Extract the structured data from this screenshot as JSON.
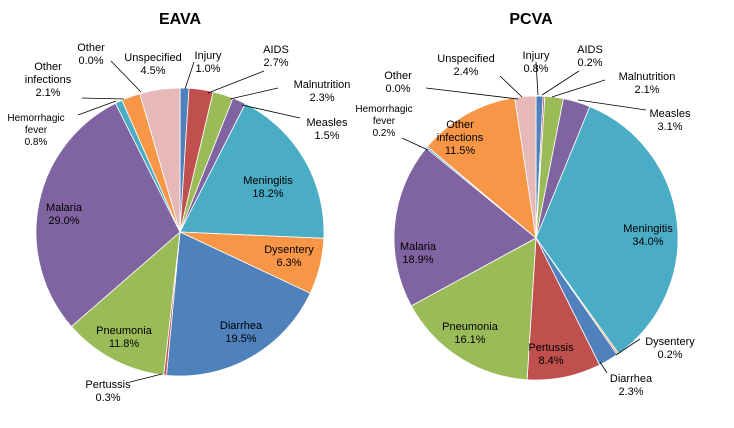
{
  "chart_data": [
    {
      "type": "pie",
      "title": "EAVA",
      "slices": [
        {
          "label": "Injury",
          "display": "1.0%",
          "value": 1.0,
          "color": "#4F81BD"
        },
        {
          "label": "AIDS",
          "display": "2.7%",
          "value": 2.7,
          "color": "#C0504D"
        },
        {
          "label": "Malnutrition",
          "display": "2.3%",
          "value": 2.3,
          "color": "#9BBB59"
        },
        {
          "label": "Measles",
          "display": "1.5%",
          "value": 1.5,
          "color": "#8064A2"
        },
        {
          "label": "Meningitis",
          "display": "18.2%",
          "value": 18.2,
          "color": "#4BACC6"
        },
        {
          "label": "Dysentery",
          "display": "6.3%",
          "value": 6.3,
          "color": "#F79646"
        },
        {
          "label": "Diarrhea",
          "display": "19.5%",
          "value": 19.5,
          "color": "#4F81BD"
        },
        {
          "label": "Pertussis",
          "display": "0.3%",
          "value": 0.3,
          "color": "#C0504D"
        },
        {
          "label": "Pneumonia",
          "display": "11.8%",
          "value": 11.8,
          "color": "#9BBB59"
        },
        {
          "label": "Malaria",
          "display": "29.0%",
          "value": 29.0,
          "color": "#8064A2"
        },
        {
          "label": "Hemorrhagic fever",
          "display": "0.8%",
          "value": 0.8,
          "color": "#4BACC6"
        },
        {
          "label": "Other infections",
          "display": "2.1%",
          "value": 2.1,
          "color": "#F79646"
        },
        {
          "label": "Other",
          "display": "0.0%",
          "value": 0.0,
          "color": "#2C4D75"
        },
        {
          "label": "Unspecified",
          "display": "4.5%",
          "value": 4.5,
          "color": "#E6B9B8"
        }
      ]
    },
    {
      "type": "pie",
      "title": "PCVA",
      "slices": [
        {
          "label": "Injury",
          "display": "0.8%",
          "value": 0.8,
          "color": "#4F81BD"
        },
        {
          "label": "AIDS",
          "display": "0.2%",
          "value": 0.2,
          "color": "#C0504D"
        },
        {
          "label": "Malnutrition",
          "display": "2.1%",
          "value": 2.1,
          "color": "#9BBB59"
        },
        {
          "label": "Measles",
          "display": "3.1%",
          "value": 3.1,
          "color": "#8064A2"
        },
        {
          "label": "Meningitis",
          "display": "34.0%",
          "value": 34.0,
          "color": "#4BACC6"
        },
        {
          "label": "Dysentery",
          "display": "0.2%",
          "value": 0.2,
          "color": "#F79646"
        },
        {
          "label": "Diarrhea",
          "display": "2.3%",
          "value": 2.3,
          "color": "#4F81BD"
        },
        {
          "label": "Pertussis",
          "display": "8.4%",
          "value": 8.4,
          "color": "#C0504D"
        },
        {
          "label": "Pneumonia",
          "display": "16.1%",
          "value": 16.1,
          "color": "#9BBB59"
        },
        {
          "label": "Malaria",
          "display": "18.9%",
          "value": 18.9,
          "color": "#8064A2"
        },
        {
          "label": "Hemorrhagic fever",
          "display": "0.2%",
          "value": 0.2,
          "color": "#4BACC6"
        },
        {
          "label": "Other infections",
          "display": "11.5%",
          "value": 11.5,
          "color": "#F79646"
        },
        {
          "label": "Other",
          "display": "0.0%",
          "value": 0.0,
          "color": "#2C4D75"
        },
        {
          "label": "Unspecified",
          "display": "2.4%",
          "value": 2.4,
          "color": "#E6B9B8"
        }
      ]
    }
  ]
}
